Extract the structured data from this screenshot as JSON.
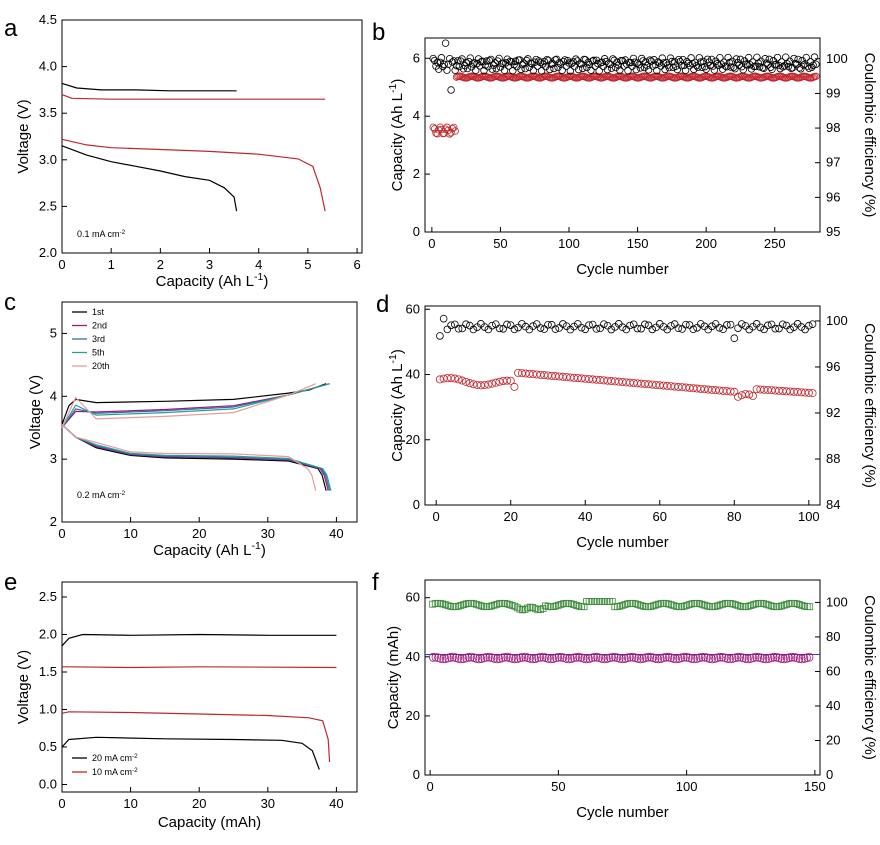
{
  "panel_letters": [
    "a",
    "b",
    "c",
    "d",
    "e",
    "f"
  ],
  "chart_data": [
    {
      "panel": "a",
      "type": "line",
      "xlabel": "Capacity (Ah L⁻¹)",
      "ylabel": "Voltage (V)",
      "xlim": [
        0,
        6.1
      ],
      "ylim": [
        2.0,
        4.5
      ],
      "xticks": [
        0,
        1,
        2,
        3,
        4,
        5,
        6
      ],
      "yticks": [
        2.0,
        2.5,
        3.0,
        3.5,
        4.0,
        4.5
      ],
      "annotation": "0.1 mA cm⁻²",
      "series": [
        {
          "name": "charge-black",
          "color": "#000000",
          "x": [
            0,
            0.3,
            0.8,
            1.5,
            2.2,
            2.9,
            3.55
          ],
          "y": [
            3.82,
            3.77,
            3.75,
            3.75,
            3.74,
            3.74,
            3.74
          ]
        },
        {
          "name": "charge-red",
          "color": "#c0272d",
          "x": [
            0,
            0.2,
            1,
            2,
            3,
            4,
            5,
            5.35
          ],
          "y": [
            3.7,
            3.66,
            3.65,
            3.65,
            3.65,
            3.65,
            3.65,
            3.65
          ]
        },
        {
          "name": "discharge-black",
          "color": "#000000",
          "x": [
            0,
            0.5,
            1,
            1.5,
            2,
            2.5,
            3,
            3.3,
            3.5,
            3.55
          ],
          "y": [
            3.15,
            3.05,
            2.98,
            2.93,
            2.88,
            2.82,
            2.78,
            2.7,
            2.6,
            2.45
          ]
        },
        {
          "name": "discharge-red",
          "color": "#c0272d",
          "x": [
            0,
            0.5,
            1,
            2,
            3,
            4,
            4.8,
            5.1,
            5.25,
            5.35
          ],
          "y": [
            3.22,
            3.16,
            3.13,
            3.11,
            3.09,
            3.06,
            3.01,
            2.93,
            2.7,
            2.45
          ]
        }
      ]
    },
    {
      "panel": "b",
      "type": "scatter",
      "xlabel": "Cycle number",
      "ylabel": "Capacity (Ah L⁻¹)",
      "y2label": "Coulombic efficiency (%)",
      "xlim": [
        -5,
        283
      ],
      "ylim": [
        0,
        6.7
      ],
      "y2lim": [
        95,
        100.6
      ],
      "xticks": [
        0,
        50,
        100,
        150,
        200,
        250
      ],
      "yticks": [
        0,
        2,
        4,
        6
      ],
      "y2ticks": [
        95,
        96,
        97,
        98,
        99,
        100
      ],
      "series": [
        {
          "name": "Capacity",
          "axis": "left",
          "color": "#c0272d",
          "cycles": "1-280",
          "values": "3.5-3.6 (cycles 1-17), 5.35 (cycles 18-280)"
        },
        {
          "name": "Coulombic efficiency",
          "axis": "right",
          "color": "#000000",
          "cycles": "1-280",
          "values": "99.5-100.1"
        }
      ]
    },
    {
      "panel": "c",
      "type": "line",
      "xlabel": "Capacity (Ah L⁻¹)",
      "ylabel": "Voltage (V)",
      "xlim": [
        0,
        43
      ],
      "ylim": [
        2,
        5.5
      ],
      "xticks": [
        0,
        10,
        20,
        30,
        40
      ],
      "yticks": [
        2,
        3,
        4,
        5
      ],
      "annotation": "0.2 mA cm⁻²",
      "legend": [
        "1st",
        "2nd",
        "3rd",
        "5th",
        "20th"
      ],
      "colors": [
        "#000000",
        "#a0197a",
        "#2f6fa8",
        "#2a9d8f",
        "#e89b9b"
      ],
      "series": [
        {
          "name": "1st",
          "charge_end": [
            38.5,
            4.2
          ],
          "discharge_end": [
            38.5,
            2.5
          ]
        },
        {
          "name": "2nd",
          "charge_end": [
            39,
            4.2
          ],
          "discharge_end": [
            38.8,
            2.5
          ]
        },
        {
          "name": "3rd",
          "charge_end": [
            39,
            4.2
          ],
          "discharge_end": [
            39,
            2.5
          ]
        },
        {
          "name": "5th",
          "charge_end": [
            39,
            4.2
          ],
          "discharge_end": [
            39.2,
            2.5
          ]
        },
        {
          "name": "20th",
          "charge_end": [
            37,
            4.2
          ],
          "discharge_end": [
            37,
            2.5
          ]
        }
      ]
    },
    {
      "panel": "d",
      "type": "scatter",
      "xlabel": "Cycle number",
      "ylabel": "Capacity (Ah L⁻¹)",
      "y2label": "Coulombic efficiency (%)",
      "xlim": [
        -3,
        103
      ],
      "ylim": [
        0,
        61
      ],
      "y2lim": [
        84,
        101.3
      ],
      "xticks": [
        0,
        20,
        40,
        60,
        80,
        100
      ],
      "yticks": [
        0,
        20,
        40,
        60
      ],
      "y2ticks": [
        84,
        88,
        92,
        96,
        100
      ],
      "series": [
        {
          "name": "Capacity",
          "axis": "left",
          "color": "#c0272d",
          "cycles": "1-101",
          "values": "38-40 (1-20), 40.5 falling to 34 (22-101)"
        },
        {
          "name": "Coulombic efficiency",
          "axis": "right",
          "color": "#000000",
          "cycles": "1-101",
          "values": "99.2-100"
        }
      ]
    },
    {
      "panel": "e",
      "type": "line",
      "xlabel": "Capacity (mAh)",
      "ylabel": "Voltage (V)",
      "xlim": [
        0,
        43
      ],
      "ylim": [
        -0.1,
        2.7
      ],
      "xticks": [
        0,
        10,
        20,
        30,
        40
      ],
      "yticks": [
        0.0,
        0.5,
        1.0,
        1.5,
        2.0,
        2.5
      ],
      "legend": [
        "20 mA cm⁻²",
        "10 mA cm⁻²"
      ],
      "series": [
        {
          "name": "20 mA cm⁻²",
          "color": "#000000",
          "charge_x": [
            0,
            1,
            3,
            10,
            20,
            30,
            40
          ],
          "charge_y": [
            1.85,
            1.95,
            2.0,
            1.99,
            2.0,
            1.99,
            1.99
          ],
          "discharge_x": [
            0,
            1,
            5,
            15,
            25,
            32,
            35,
            36.5,
            37.5
          ],
          "discharge_y": [
            0.5,
            0.6,
            0.63,
            0.61,
            0.6,
            0.59,
            0.55,
            0.45,
            0.2
          ]
        },
        {
          "name": "10 mA cm⁻²",
          "color": "#c0272d",
          "charge_x": [
            0,
            1,
            10,
            20,
            40
          ],
          "charge_y": [
            1.57,
            1.57,
            1.56,
            1.57,
            1.56
          ],
          "discharge_x": [
            0,
            1,
            10,
            20,
            30,
            36,
            38,
            38.8,
            39
          ],
          "discharge_y": [
            0.95,
            0.97,
            0.96,
            0.94,
            0.92,
            0.89,
            0.85,
            0.6,
            0.3
          ]
        }
      ]
    },
    {
      "panel": "f",
      "type": "scatter",
      "xlabel": "Cycle number",
      "ylabel": "Capacity (mAh)",
      "y2label": "Coulombic efficiency (%)",
      "xlim": [
        -2,
        152
      ],
      "ylim": [
        0,
        66
      ],
      "y2lim": [
        0,
        113
      ],
      "xticks": [
        0,
        50,
        100,
        150
      ],
      "yticks": [
        0,
        20,
        40,
        60
      ],
      "y2ticks": [
        0,
        20,
        40,
        60,
        80,
        100
      ],
      "series": [
        {
          "name": "Capacity",
          "axis": "left",
          "color": "#a0197a",
          "cycles": "1-148",
          "values": "39-40"
        },
        {
          "name": "Coulombic efficiency",
          "axis": "right",
          "color": "#3a8a3a",
          "cycles": "1-148",
          "values": "96-101"
        }
      ]
    }
  ]
}
